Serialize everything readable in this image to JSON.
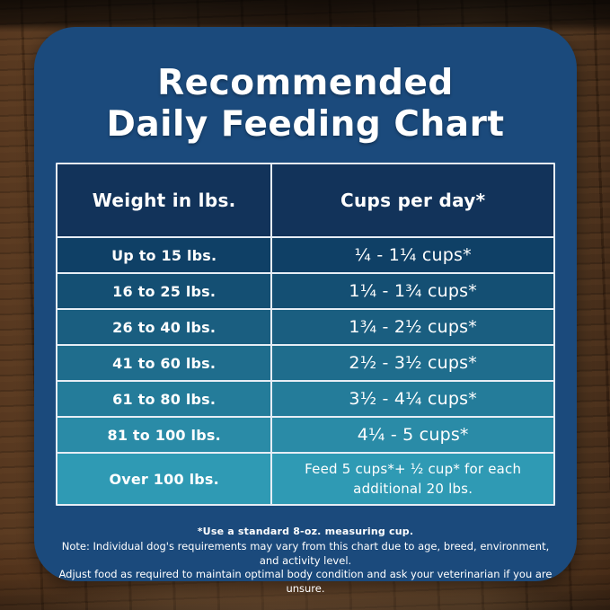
{
  "header": {
    "title_line1": "Recommended",
    "title_line2": "Daily Feeding Chart"
  },
  "table": {
    "columns": [
      "Weight in lbs.",
      "Cups per day*"
    ],
    "rows": [
      {
        "weight": "Up to 15 lbs.",
        "cups": "¼ - 1¼ cups*"
      },
      {
        "weight": "16 to 25 lbs.",
        "cups": "1¼ - 1¾ cups*"
      },
      {
        "weight": "26 to 40 lbs.",
        "cups": "1¾ - 2½ cups*"
      },
      {
        "weight": "41 to 60 lbs.",
        "cups": "2½ - 3½ cups*"
      },
      {
        "weight": "61 to 80 lbs.",
        "cups": "3½ - 4¼ cups*"
      },
      {
        "weight": "81 to 100 lbs.",
        "cups": "4¼ - 5 cups*"
      },
      {
        "weight": "Over 100 lbs.",
        "cups": "Feed 5 cups*+ ½ cup* for each additional 20 lbs."
      }
    ],
    "row_colors": [
      "#0F4066",
      "#144F73",
      "#1A5E80",
      "#1F6D8D",
      "#247C9A",
      "#2A8BA7",
      "#2F9AB4"
    ]
  },
  "footnotes": {
    "measuring_cup": "*Use a standard 8-oz. measuring cup.",
    "note_line1": "Note: Individual dog's requirements may vary from this chart due to age, breed, environment, and activity level.",
    "note_line2": "Adjust food as required to maintain optimal body condition and ask your veterinarian if you are unsure."
  },
  "colors": {
    "card_background": "#1B4A7C",
    "header_background": "#12335A",
    "table_border": "#E6EDF5",
    "title_text": "#FFFFFF"
  },
  "chart_data": {
    "type": "table",
    "title": "Recommended Daily Feeding Chart",
    "columns": [
      "Weight in lbs.",
      "Cups per day*"
    ],
    "rows": [
      [
        "Up to 15 lbs.",
        "¼ - 1¼ cups*"
      ],
      [
        "16 to 25 lbs.",
        "1¼ - 1¾ cups*"
      ],
      [
        "26 to 40 lbs.",
        "1¾ - 2½ cups*"
      ],
      [
        "41 to 60 lbs.",
        "2½ - 3½ cups*"
      ],
      [
        "61 to 80 lbs.",
        "3½ - 4¼ cups*"
      ],
      [
        "81 to 100 lbs.",
        "4¼ - 5 cups*"
      ],
      [
        "Over 100 lbs.",
        "Feed 5 cups*+ ½ cup* for each additional 20 lbs."
      ]
    ],
    "footnote": "*Use a standard 8-oz. measuring cup."
  }
}
